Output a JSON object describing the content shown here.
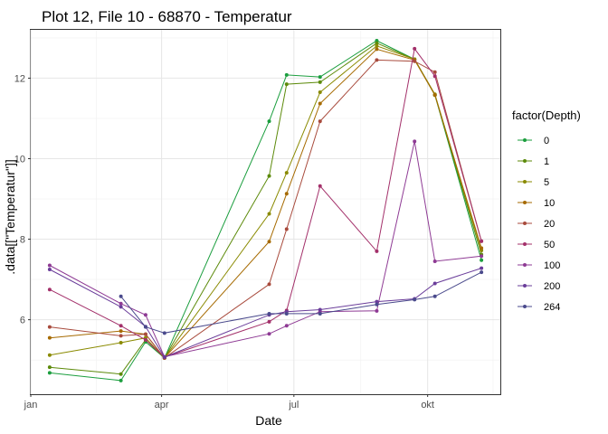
{
  "chart_data": {
    "type": "line",
    "title": "Plot 12, File 10 - 68870  -  Temperatur",
    "xlabel": "Date",
    "ylabel": ".data[[\"Temperatur\"]]",
    "x_axis_type": "date",
    "xlim": [
      "2021-01-01",
      "2021-11-20"
    ],
    "ylim": [
      4.15,
      13.2
    ],
    "x_ticks": [
      {
        "label": "jan",
        "date": "2021-01-01"
      },
      {
        "label": "apr",
        "date": "2021-04-01"
      },
      {
        "label": "jul",
        "date": "2021-07-01"
      },
      {
        "label": "okt",
        "date": "2021-10-01"
      }
    ],
    "y_ticks": [
      6,
      8,
      10,
      12
    ],
    "grid": true,
    "legend": {
      "title": "factor(Depth)",
      "position": "right"
    },
    "series": [
      {
        "name": "0",
        "color": "#1b9e3e",
        "points": [
          [
            "2021-01-14",
            4.68
          ],
          [
            "2021-03-04",
            4.49
          ],
          [
            "2021-03-21",
            5.45
          ],
          [
            "2021-04-03",
            5.05
          ],
          [
            "2021-06-14",
            10.93
          ],
          [
            "2021-06-26",
            12.08
          ],
          [
            "2021-07-19",
            12.03
          ],
          [
            "2021-08-27",
            12.93
          ],
          [
            "2021-09-22",
            12.47
          ],
          [
            "2021-10-06",
            11.58
          ],
          [
            "2021-11-07",
            7.48
          ]
        ]
      },
      {
        "name": "1",
        "color": "#5c8a0a",
        "points": [
          [
            "2021-01-14",
            4.82
          ],
          [
            "2021-03-04",
            4.65
          ],
          [
            "2021-03-21",
            5.5
          ],
          [
            "2021-04-03",
            5.05
          ],
          [
            "2021-06-14",
            9.57
          ],
          [
            "2021-06-26",
            11.85
          ],
          [
            "2021-07-19",
            11.9
          ],
          [
            "2021-08-27",
            12.87
          ],
          [
            "2021-09-22",
            12.47
          ],
          [
            "2021-10-06",
            11.58
          ],
          [
            "2021-11-07",
            7.62
          ]
        ]
      },
      {
        "name": "5",
        "color": "#8a8a00",
        "points": [
          [
            "2021-01-14",
            5.12
          ],
          [
            "2021-03-04",
            5.43
          ],
          [
            "2021-03-21",
            5.55
          ],
          [
            "2021-04-03",
            5.05
          ],
          [
            "2021-06-14",
            8.63
          ],
          [
            "2021-06-26",
            9.65
          ],
          [
            "2021-07-19",
            11.65
          ],
          [
            "2021-08-27",
            12.8
          ],
          [
            "2021-09-22",
            12.47
          ],
          [
            "2021-10-06",
            11.6
          ],
          [
            "2021-11-07",
            7.72
          ]
        ]
      },
      {
        "name": "10",
        "color": "#a66a00",
        "points": [
          [
            "2021-01-14",
            5.55
          ],
          [
            "2021-03-04",
            5.72
          ],
          [
            "2021-03-21",
            5.64
          ],
          [
            "2021-04-03",
            5.05
          ],
          [
            "2021-06-14",
            7.94
          ],
          [
            "2021-06-26",
            9.13
          ],
          [
            "2021-07-19",
            11.37
          ],
          [
            "2021-08-27",
            12.72
          ],
          [
            "2021-09-22",
            12.45
          ],
          [
            "2021-10-06",
            11.58
          ],
          [
            "2021-11-07",
            7.78
          ]
        ]
      },
      {
        "name": "20",
        "color": "#a84a3c",
        "points": [
          [
            "2021-01-14",
            5.82
          ],
          [
            "2021-03-04",
            5.6
          ],
          [
            "2021-03-21",
            5.64
          ],
          [
            "2021-04-03",
            5.05
          ],
          [
            "2021-06-14",
            6.88
          ],
          [
            "2021-06-26",
            8.25
          ],
          [
            "2021-07-19",
            10.93
          ],
          [
            "2021-08-27",
            12.45
          ],
          [
            "2021-09-22",
            12.42
          ],
          [
            "2021-10-06",
            12.15
          ],
          [
            "2021-11-07",
            7.95
          ]
        ]
      },
      {
        "name": "50",
        "color": "#a3306a",
        "points": [
          [
            "2021-01-14",
            6.75
          ],
          [
            "2021-03-04",
            5.85
          ],
          [
            "2021-03-21",
            5.5
          ],
          [
            "2021-04-03",
            5.07
          ],
          [
            "2021-06-14",
            5.95
          ],
          [
            "2021-06-26",
            6.23
          ],
          [
            "2021-07-19",
            9.32
          ],
          [
            "2021-08-27",
            7.7
          ],
          [
            "2021-09-22",
            12.73
          ],
          [
            "2021-10-06",
            12.05
          ],
          [
            "2021-11-07",
            7.95
          ]
        ]
      },
      {
        "name": "100",
        "color": "#8e3a94",
        "points": [
          [
            "2021-01-14",
            7.35
          ],
          [
            "2021-03-04",
            6.4
          ],
          [
            "2021-03-21",
            6.12
          ],
          [
            "2021-04-03",
            5.08
          ],
          [
            "2021-06-14",
            5.65
          ],
          [
            "2021-06-26",
            5.85
          ],
          [
            "2021-07-19",
            6.2
          ],
          [
            "2021-08-27",
            6.22
          ],
          [
            "2021-09-22",
            10.43
          ],
          [
            "2021-10-06",
            7.45
          ],
          [
            "2021-11-07",
            7.58
          ]
        ]
      },
      {
        "name": "200",
        "color": "#6a3d9a",
        "points": [
          [
            "2021-01-14",
            7.25
          ],
          [
            "2021-03-04",
            6.32
          ],
          [
            "2021-03-21",
            5.83
          ],
          [
            "2021-04-03",
            5.07
          ],
          [
            "2021-06-14",
            6.12
          ],
          [
            "2021-06-26",
            6.2
          ],
          [
            "2021-07-19",
            6.25
          ],
          [
            "2021-08-27",
            6.45
          ],
          [
            "2021-09-22",
            6.52
          ],
          [
            "2021-10-06",
            6.9
          ],
          [
            "2021-11-07",
            7.28
          ]
        ]
      },
      {
        "name": "264",
        "color": "#4a4a8c",
        "points": [
          [
            "2021-03-04",
            6.58
          ],
          [
            "2021-03-21",
            5.82
          ],
          [
            "2021-04-03",
            5.67
          ],
          [
            "2021-06-14",
            6.15
          ],
          [
            "2021-06-26",
            6.15
          ],
          [
            "2021-07-19",
            6.15
          ],
          [
            "2021-08-27",
            6.38
          ],
          [
            "2021-09-22",
            6.5
          ],
          [
            "2021-10-06",
            6.58
          ],
          [
            "2021-11-07",
            7.18
          ]
        ]
      }
    ]
  }
}
